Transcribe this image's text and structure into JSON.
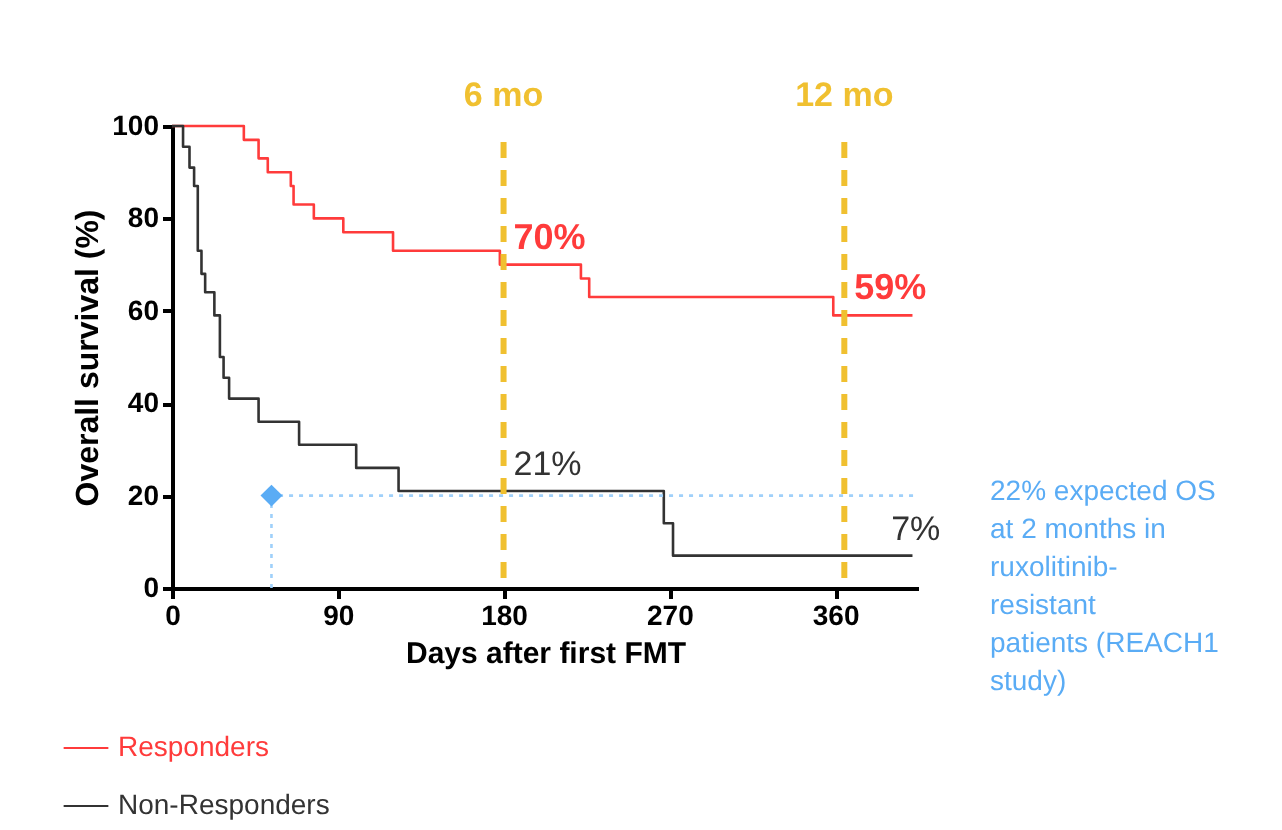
{
  "chart_data": {
    "type": "step",
    "xlabel": "Days after first FMT",
    "ylabel": "Overall survival (%)",
    "xlim": [
      0,
      405
    ],
    "xticks": [
      0,
      90,
      180,
      270,
      360
    ],
    "ylim": [
      0,
      100
    ],
    "yticks": [
      0,
      20,
      40,
      60,
      80,
      100
    ],
    "grid": false,
    "legend": "bottom",
    "series": [
      {
        "name": "Responders",
        "color": "#ff3b3b",
        "x": [
          0,
          39,
          47,
          52,
          64.5,
          66,
          77,
          93,
          120,
          178,
          222,
          226.5,
          359,
          402
        ],
        "values": [
          100,
          97,
          93,
          90,
          87,
          83,
          80,
          77,
          73,
          70,
          67,
          63,
          59,
          59
        ]
      },
      {
        "name": "Non-Responders",
        "color": "#333333",
        "x": [
          0,
          6,
          9.5,
          12,
          14,
          16,
          18,
          23,
          26,
          28,
          31,
          47,
          69,
          100,
          123,
          267,
          272,
          402
        ],
        "values": [
          100,
          95.5,
          91,
          87,
          73,
          68,
          64,
          59,
          50,
          45.5,
          41,
          36,
          31,
          26,
          21,
          14,
          7,
          7
        ]
      },
      {
        "color": "#9fd0fa",
        "type": "line",
        "line_style": "dotted",
        "x": [
          54,
          54,
          405
        ],
        "values": [
          0,
          20,
          20
        ]
      },
      {
        "color": "#5aacf5",
        "type": "scatter",
        "marker": "diamond",
        "x": [
          54
        ],
        "values": [
          20
        ]
      }
    ],
    "ref_lines": [
      {
        "axis": "x",
        "value": 180,
        "label": "6 mo",
        "color": "#f0c030",
        "line_style": "dashed"
      },
      {
        "axis": "x",
        "value": 365,
        "label": "12 mo",
        "color": "#f0c030",
        "line_style": "dashed"
      }
    ],
    "annotations": [
      {
        "text": "70%",
        "x": 180,
        "y": 70
      },
      {
        "text": "59%",
        "x": 365,
        "y": 59
      },
      {
        "text": "21%",
        "x": 180,
        "y": 21
      },
      {
        "text": "7%",
        "x": 385,
        "y": 7
      },
      "22% expected OS at 2 months in ruxolitinib-resistant patients (REACH1 study)"
    ]
  }
}
